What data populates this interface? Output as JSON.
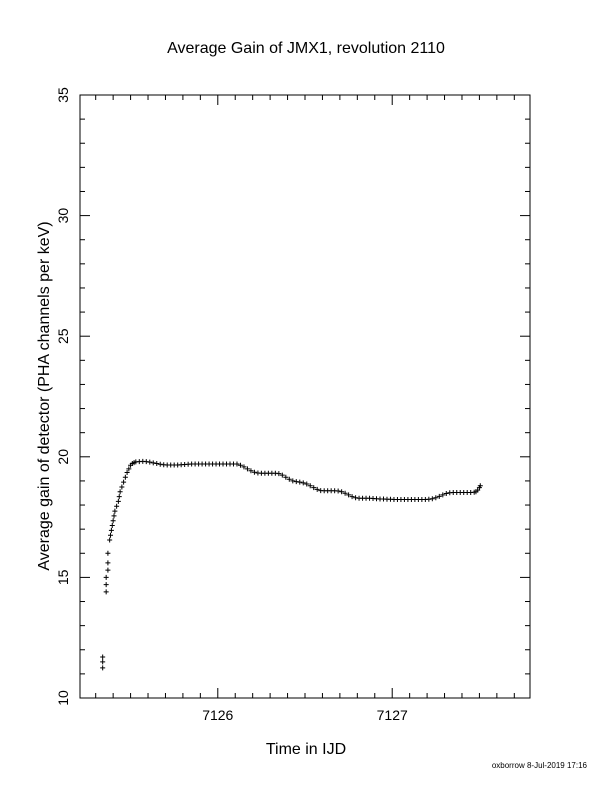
{
  "footer": {
    "credit": "oxborrow  8-Jul-2019 17:16"
  },
  "chart_data": {
    "type": "scatter",
    "title": "Average Gain of JMX1, revolution 2110",
    "xlabel": "Time in IJD",
    "ylabel": "Average gain of detector (PHA channels per keV)",
    "xlim": [
      7125.21,
      7127.79
    ],
    "ylim": [
      10,
      35
    ],
    "x_ticks": [
      7126,
      7127
    ],
    "y_ticks": [
      10,
      15,
      20,
      25,
      30,
      35
    ],
    "marker": "+",
    "grid": false,
    "colors": {
      "marker": "#000000",
      "axes": "#000000"
    },
    "points": [
      [
        7125.34,
        11.25
      ],
      [
        7125.34,
        11.5
      ],
      [
        7125.34,
        11.7
      ],
      [
        7125.36,
        14.4
      ],
      [
        7125.36,
        14.7
      ],
      [
        7125.36,
        15.0
      ],
      [
        7125.37,
        15.3
      ],
      [
        7125.37,
        15.6
      ],
      [
        7125.37,
        16.0
      ],
      [
        7125.38,
        16.55
      ],
      [
        7125.385,
        16.75
      ],
      [
        7125.39,
        16.95
      ],
      [
        7125.395,
        17.15
      ],
      [
        7125.4,
        17.35
      ],
      [
        7125.405,
        17.55
      ],
      [
        7125.41,
        17.75
      ],
      [
        7125.42,
        17.95
      ],
      [
        7125.43,
        18.15
      ],
      [
        7125.435,
        18.35
      ],
      [
        7125.44,
        18.55
      ],
      [
        7125.45,
        18.75
      ],
      [
        7125.46,
        18.95
      ],
      [
        7125.47,
        19.15
      ],
      [
        7125.48,
        19.35
      ],
      [
        7125.49,
        19.5
      ],
      [
        7125.5,
        19.65
      ],
      [
        7125.51,
        19.72
      ],
      [
        7125.52,
        19.76
      ],
      [
        7125.53,
        19.79
      ],
      [
        7125.55,
        19.8
      ],
      [
        7125.57,
        19.81
      ],
      [
        7125.59,
        19.8
      ],
      [
        7125.61,
        19.78
      ],
      [
        7125.63,
        19.75
      ],
      [
        7125.65,
        19.72
      ],
      [
        7125.67,
        19.69
      ],
      [
        7125.69,
        19.67
      ],
      [
        7125.71,
        19.66
      ],
      [
        7125.73,
        19.66
      ],
      [
        7125.75,
        19.66
      ],
      [
        7125.77,
        19.66
      ],
      [
        7125.79,
        19.67
      ],
      [
        7125.81,
        19.68
      ],
      [
        7125.83,
        19.69
      ],
      [
        7125.85,
        19.7
      ],
      [
        7125.87,
        19.7
      ],
      [
        7125.89,
        19.7
      ],
      [
        7125.91,
        19.7
      ],
      [
        7125.93,
        19.7
      ],
      [
        7125.95,
        19.7
      ],
      [
        7125.97,
        19.7
      ],
      [
        7125.99,
        19.7
      ],
      [
        7126.01,
        19.7
      ],
      [
        7126.03,
        19.7
      ],
      [
        7126.05,
        19.7
      ],
      [
        7126.07,
        19.7
      ],
      [
        7126.09,
        19.7
      ],
      [
        7126.11,
        19.7
      ],
      [
        7126.13,
        19.65
      ],
      [
        7126.15,
        19.58
      ],
      [
        7126.17,
        19.5
      ],
      [
        7126.19,
        19.42
      ],
      [
        7126.21,
        19.36
      ],
      [
        7126.23,
        19.33
      ],
      [
        7126.25,
        19.32
      ],
      [
        7126.27,
        19.32
      ],
      [
        7126.29,
        19.32
      ],
      [
        7126.31,
        19.32
      ],
      [
        7126.33,
        19.32
      ],
      [
        7126.35,
        19.3
      ],
      [
        7126.37,
        19.24
      ],
      [
        7126.39,
        19.15
      ],
      [
        7126.41,
        19.07
      ],
      [
        7126.43,
        19.0
      ],
      [
        7126.45,
        18.97
      ],
      [
        7126.47,
        18.95
      ],
      [
        7126.49,
        18.92
      ],
      [
        7126.51,
        18.87
      ],
      [
        7126.53,
        18.8
      ],
      [
        7126.55,
        18.72
      ],
      [
        7126.57,
        18.65
      ],
      [
        7126.59,
        18.6
      ],
      [
        7126.61,
        18.59
      ],
      [
        7126.63,
        18.59
      ],
      [
        7126.65,
        18.59
      ],
      [
        7126.67,
        18.59
      ],
      [
        7126.69,
        18.58
      ],
      [
        7126.71,
        18.55
      ],
      [
        7126.73,
        18.49
      ],
      [
        7126.75,
        18.42
      ],
      [
        7126.77,
        18.35
      ],
      [
        7126.79,
        18.3
      ],
      [
        7126.81,
        18.28
      ],
      [
        7126.83,
        18.28
      ],
      [
        7126.85,
        18.28
      ],
      [
        7126.87,
        18.28
      ],
      [
        7126.89,
        18.27
      ],
      [
        7126.91,
        18.26
      ],
      [
        7126.93,
        18.25
      ],
      [
        7126.95,
        18.25
      ],
      [
        7126.97,
        18.24
      ],
      [
        7126.99,
        18.24
      ],
      [
        7127.01,
        18.23
      ],
      [
        7127.03,
        18.23
      ],
      [
        7127.05,
        18.23
      ],
      [
        7127.07,
        18.23
      ],
      [
        7127.09,
        18.23
      ],
      [
        7127.11,
        18.23
      ],
      [
        7127.13,
        18.23
      ],
      [
        7127.15,
        18.23
      ],
      [
        7127.17,
        18.23
      ],
      [
        7127.19,
        18.23
      ],
      [
        7127.21,
        18.24
      ],
      [
        7127.23,
        18.26
      ],
      [
        7127.25,
        18.3
      ],
      [
        7127.27,
        18.36
      ],
      [
        7127.29,
        18.42
      ],
      [
        7127.31,
        18.48
      ],
      [
        7127.33,
        18.51
      ],
      [
        7127.35,
        18.52
      ],
      [
        7127.37,
        18.52
      ],
      [
        7127.39,
        18.52
      ],
      [
        7127.41,
        18.52
      ],
      [
        7127.43,
        18.52
      ],
      [
        7127.45,
        18.52
      ],
      [
        7127.47,
        18.53
      ],
      [
        7127.48,
        18.55
      ],
      [
        7127.49,
        18.62
      ],
      [
        7127.5,
        18.72
      ],
      [
        7127.505,
        18.8
      ]
    ]
  }
}
